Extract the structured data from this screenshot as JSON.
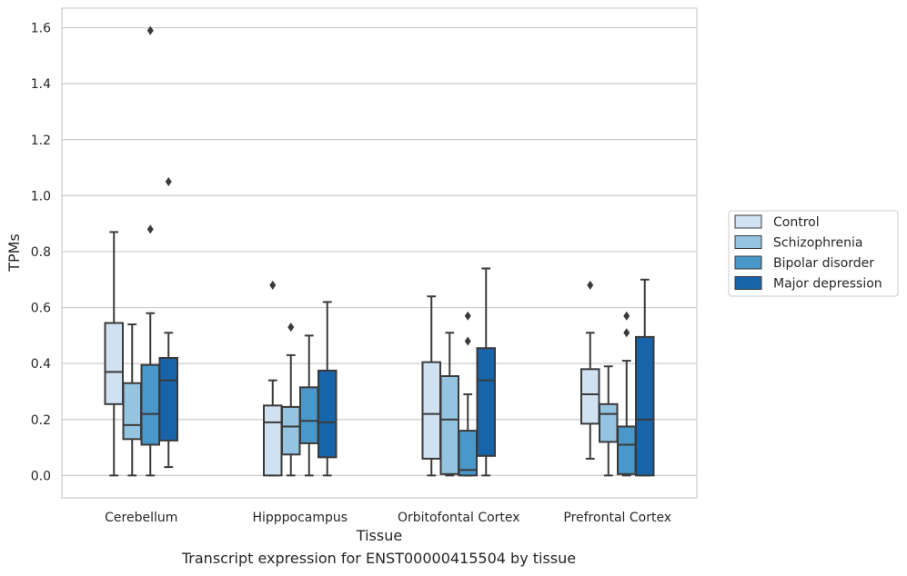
{
  "caption": "Transcript expression for ENST00000415504 by tissue",
  "chart_data": {
    "type": "box",
    "xlabel": "Tissue",
    "ylabel": "TPMs",
    "ylim": [
      -0.08,
      1.67
    ],
    "yticks": [
      "0.0",
      "0.2",
      "0.4",
      "0.6",
      "0.8",
      "1.0",
      "1.2",
      "1.4",
      "1.6"
    ],
    "grid": true,
    "legend_position": "right",
    "categories": [
      "Cerebellum",
      "Hipppocampus",
      "Orbitofontal Cortex",
      "Prefrontal Cortex"
    ],
    "series": [
      {
        "name": "Control",
        "color": "#d0e1f2",
        "boxes": [
          {
            "min": 0.0,
            "q1": 0.255,
            "median": 0.37,
            "q3": 0.545,
            "max": 0.87,
            "outliers": []
          },
          {
            "min": 0.0,
            "q1": 0.0,
            "median": 0.19,
            "q3": 0.25,
            "max": 0.34,
            "outliers": [
              0.68
            ]
          },
          {
            "min": 0.0,
            "q1": 0.06,
            "median": 0.22,
            "q3": 0.405,
            "max": 0.64,
            "outliers": []
          },
          {
            "min": 0.06,
            "q1": 0.185,
            "median": 0.29,
            "q3": 0.38,
            "max": 0.51,
            "outliers": [
              0.68
            ]
          }
        ]
      },
      {
        "name": "Schizophrenia",
        "color": "#94c4df",
        "boxes": [
          {
            "min": 0.0,
            "q1": 0.13,
            "median": 0.18,
            "q3": 0.33,
            "max": 0.54,
            "outliers": []
          },
          {
            "min": 0.0,
            "q1": 0.075,
            "median": 0.175,
            "q3": 0.245,
            "max": 0.43,
            "outliers": [
              0.53
            ]
          },
          {
            "min": 0.0,
            "q1": 0.005,
            "median": 0.2,
            "q3": 0.355,
            "max": 0.51,
            "outliers": []
          },
          {
            "min": 0.0,
            "q1": 0.12,
            "median": 0.22,
            "q3": 0.255,
            "max": 0.39,
            "outliers": []
          }
        ]
      },
      {
        "name": "Bipolar disorder",
        "color": "#4a98c9",
        "boxes": [
          {
            "min": 0.0,
            "q1": 0.11,
            "median": 0.22,
            "q3": 0.395,
            "max": 0.58,
            "outliers": [
              0.88,
              1.59
            ]
          },
          {
            "min": 0.0,
            "q1": 0.115,
            "median": 0.195,
            "q3": 0.315,
            "max": 0.5,
            "outliers": []
          },
          {
            "min": 0.0,
            "q1": 0.0,
            "median": 0.02,
            "q3": 0.16,
            "max": 0.29,
            "outliers": [
              0.48,
              0.57
            ]
          },
          {
            "min": 0.0,
            "q1": 0.005,
            "median": 0.11,
            "q3": 0.175,
            "max": 0.41,
            "outliers": [
              0.51,
              0.57
            ]
          }
        ]
      },
      {
        "name": "Major depression",
        "color": "#1764ab",
        "boxes": [
          {
            "min": 0.03,
            "q1": 0.125,
            "median": 0.34,
            "q3": 0.42,
            "max": 0.51,
            "outliers": [
              1.05
            ]
          },
          {
            "min": 0.0,
            "q1": 0.065,
            "median": 0.19,
            "q3": 0.375,
            "max": 0.62,
            "outliers": []
          },
          {
            "min": 0.0,
            "q1": 0.07,
            "median": 0.34,
            "q3": 0.455,
            "max": 0.74,
            "outliers": []
          },
          {
            "min": 0.0,
            "q1": 0.0,
            "median": 0.2,
            "q3": 0.495,
            "max": 0.7,
            "outliers": []
          }
        ]
      }
    ]
  }
}
